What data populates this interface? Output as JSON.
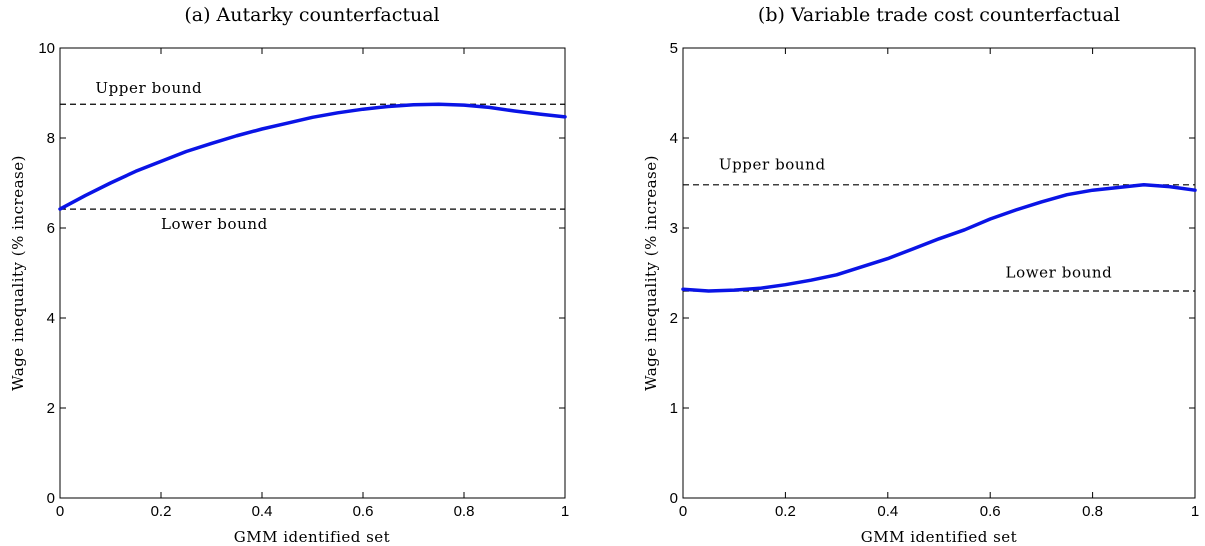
{
  "chart_data": [
    {
      "type": "line",
      "title": "(a) Autarky counterfactual",
      "xlabel": "GMM identified set",
      "ylabel": "Wage inequality (% increase)",
      "xlim": [
        0,
        1
      ],
      "ylim": [
        0,
        10
      ],
      "xticks": [
        0,
        0.2,
        0.4,
        0.6,
        0.8,
        1
      ],
      "xtick_labels": [
        "0",
        "0.2",
        "0.4",
        "0.6",
        "0.8",
        "1"
      ],
      "yticks": [
        0,
        2,
        4,
        6,
        8,
        10
      ],
      "ytick_labels": [
        "0",
        "2",
        "4",
        "6",
        "8",
        "10"
      ],
      "grid": false,
      "color": "#0a14e6",
      "bounds": [
        {
          "label": "Upper bound",
          "value": 8.75,
          "label_x": 0.07,
          "label_y": 9.0
        },
        {
          "label": "Lower bound",
          "value": 6.42,
          "label_x": 0.2,
          "label_y": 5.98
        }
      ],
      "series": [
        {
          "x": [
            0,
            0.05,
            0.1,
            0.15,
            0.2,
            0.25,
            0.3,
            0.35,
            0.4,
            0.45,
            0.5,
            0.55,
            0.6,
            0.65,
            0.7,
            0.75,
            0.8,
            0.85,
            0.9,
            0.95,
            1.0
          ],
          "y": [
            6.42,
            6.72,
            7.0,
            7.26,
            7.48,
            7.7,
            7.88,
            8.05,
            8.2,
            8.33,
            8.46,
            8.56,
            8.64,
            8.7,
            8.74,
            8.75,
            8.73,
            8.68,
            8.6,
            8.53,
            8.47
          ]
        }
      ]
    },
    {
      "type": "line",
      "title": "(b) Variable trade cost counterfactual",
      "xlabel": "GMM identified set",
      "ylabel": "Wage inequality (% increase)",
      "xlim": [
        0,
        1
      ],
      "ylim": [
        0,
        5
      ],
      "xticks": [
        0,
        0.2,
        0.4,
        0.6,
        0.8,
        1
      ],
      "xtick_labels": [
        "0",
        "0.2",
        "0.4",
        "0.6",
        "0.8",
        "1"
      ],
      "yticks": [
        0,
        1,
        2,
        3,
        4,
        5
      ],
      "ytick_labels": [
        "0",
        "1",
        "2",
        "3",
        "4",
        "5"
      ],
      "grid": false,
      "color": "#0a14e6",
      "bounds": [
        {
          "label": "Upper bound",
          "value": 3.48,
          "label_x": 0.07,
          "label_y": 3.65
        },
        {
          "label": "Lower bound",
          "value": 2.3,
          "label_x": 0.63,
          "label_y": 2.45
        }
      ],
      "series": [
        {
          "x": [
            0,
            0.05,
            0.1,
            0.15,
            0.2,
            0.25,
            0.3,
            0.35,
            0.4,
            0.45,
            0.5,
            0.55,
            0.6,
            0.65,
            0.7,
            0.75,
            0.8,
            0.85,
            0.9,
            0.95,
            1.0
          ],
          "y": [
            2.32,
            2.3,
            2.31,
            2.33,
            2.37,
            2.42,
            2.48,
            2.57,
            2.66,
            2.77,
            2.88,
            2.98,
            3.1,
            3.2,
            3.29,
            3.37,
            3.42,
            3.45,
            3.48,
            3.46,
            3.42
          ]
        }
      ]
    }
  ]
}
